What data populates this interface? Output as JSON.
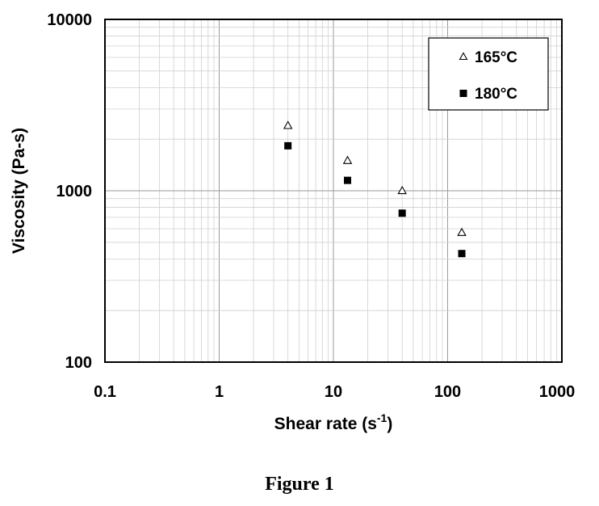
{
  "chart_data": {
    "type": "scatter",
    "xscale": "log",
    "yscale": "log",
    "xlim": [
      0.1,
      1000
    ],
    "ylim": [
      100,
      10000
    ],
    "xticks": [
      "0.1",
      "1",
      "10",
      "100",
      "1000"
    ],
    "yticks": [
      "10000",
      "1000",
      "100"
    ],
    "xlabel": "Shear rate (s",
    "xlabel_sup": "-1",
    "xlabel_end": ")",
    "ylabel": "Viscosity (Pa-s)",
    "grid": true,
    "legend_position": "top-right",
    "series": [
      {
        "name": "165°C",
        "marker": "open-triangle",
        "color": "#000000",
        "x": [
          4,
          13.3,
          40,
          133
        ],
        "y": [
          2400,
          1500,
          1000,
          570
        ]
      },
      {
        "name": "180°C",
        "marker": "filled-square",
        "color": "#000000",
        "x": [
          4,
          13.3,
          40,
          133
        ],
        "y": [
          1830,
          1150,
          740,
          430
        ]
      }
    ]
  },
  "caption": "Figure 1"
}
